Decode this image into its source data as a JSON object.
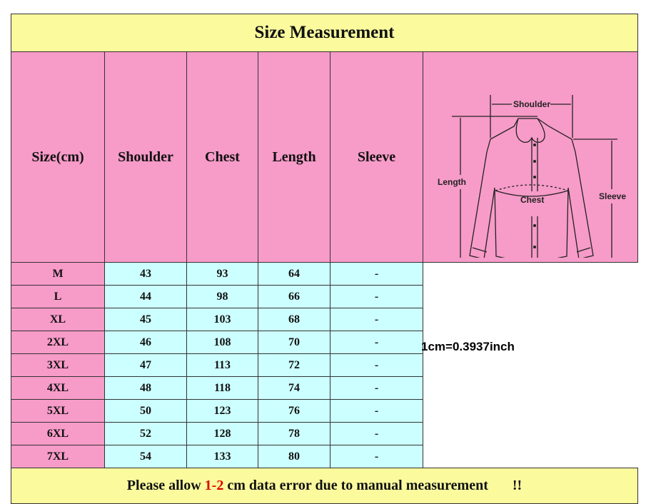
{
  "title": "Size Measurement",
  "headers": [
    "Size(cm)",
    "Shoulder",
    "Chest",
    "Length",
    "Sleeve"
  ],
  "rows": [
    [
      "M",
      "43",
      "93",
      "64",
      "-"
    ],
    [
      "L",
      "44",
      "98",
      "66",
      "-"
    ],
    [
      "XL",
      "45",
      "103",
      "68",
      "-"
    ],
    [
      "2XL",
      "46",
      "108",
      "70",
      "-"
    ],
    [
      "3XL",
      "47",
      "113",
      "72",
      "-"
    ],
    [
      "4XL",
      "48",
      "118",
      "74",
      "-"
    ],
    [
      "5XL",
      "50",
      "123",
      "76",
      "-"
    ],
    [
      "6XL",
      "52",
      "128",
      "78",
      "-"
    ],
    [
      "7XL",
      "54",
      "133",
      "80",
      "-"
    ]
  ],
  "diagram": {
    "shoulder": "Shoulder",
    "length": "Length",
    "chest": "Chest",
    "sleeve": "Sleeve"
  },
  "footer": {
    "before": "Please allow ",
    "highlight": "1-2",
    "after": " cm data error due to manual measurement",
    "marks": "!!"
  },
  "conversion": "1cm=0.3937inch",
  "colors": {
    "title_bg": "#fbfb9e",
    "header_bg": "#f79bc8",
    "cell_bg": "#ccffff",
    "highlight": "#e00000"
  }
}
